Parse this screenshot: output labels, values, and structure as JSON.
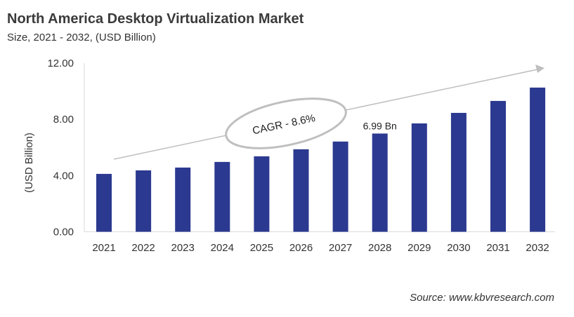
{
  "chart_data": {
    "type": "bar",
    "title": "North America Desktop Virtualization Market",
    "subtitle": "Size, 2021 - 2032, (USD Billion)",
    "xlabel": "",
    "ylabel": "(USD Billion)",
    "ylim": [
      0,
      12
    ],
    "yticks": [
      "0.00",
      "4.00",
      "8.00",
      "12.00"
    ],
    "grid": false,
    "categories": [
      "2021",
      "2022",
      "2023",
      "2024",
      "2025",
      "2026",
      "2027",
      "2028",
      "2029",
      "2030",
      "2031",
      "2032"
    ],
    "values": [
      4.12,
      4.37,
      4.57,
      4.97,
      5.37,
      5.87,
      6.42,
      6.99,
      7.71,
      8.46,
      9.31,
      10.26
    ],
    "bar_color": "#2b3990",
    "annotations": {
      "data_label": "6.99 Bn",
      "data_label_category": "2028",
      "cagr": "CAGR - 8.6%"
    },
    "source": "Source: www.kbvresearch.com"
  }
}
